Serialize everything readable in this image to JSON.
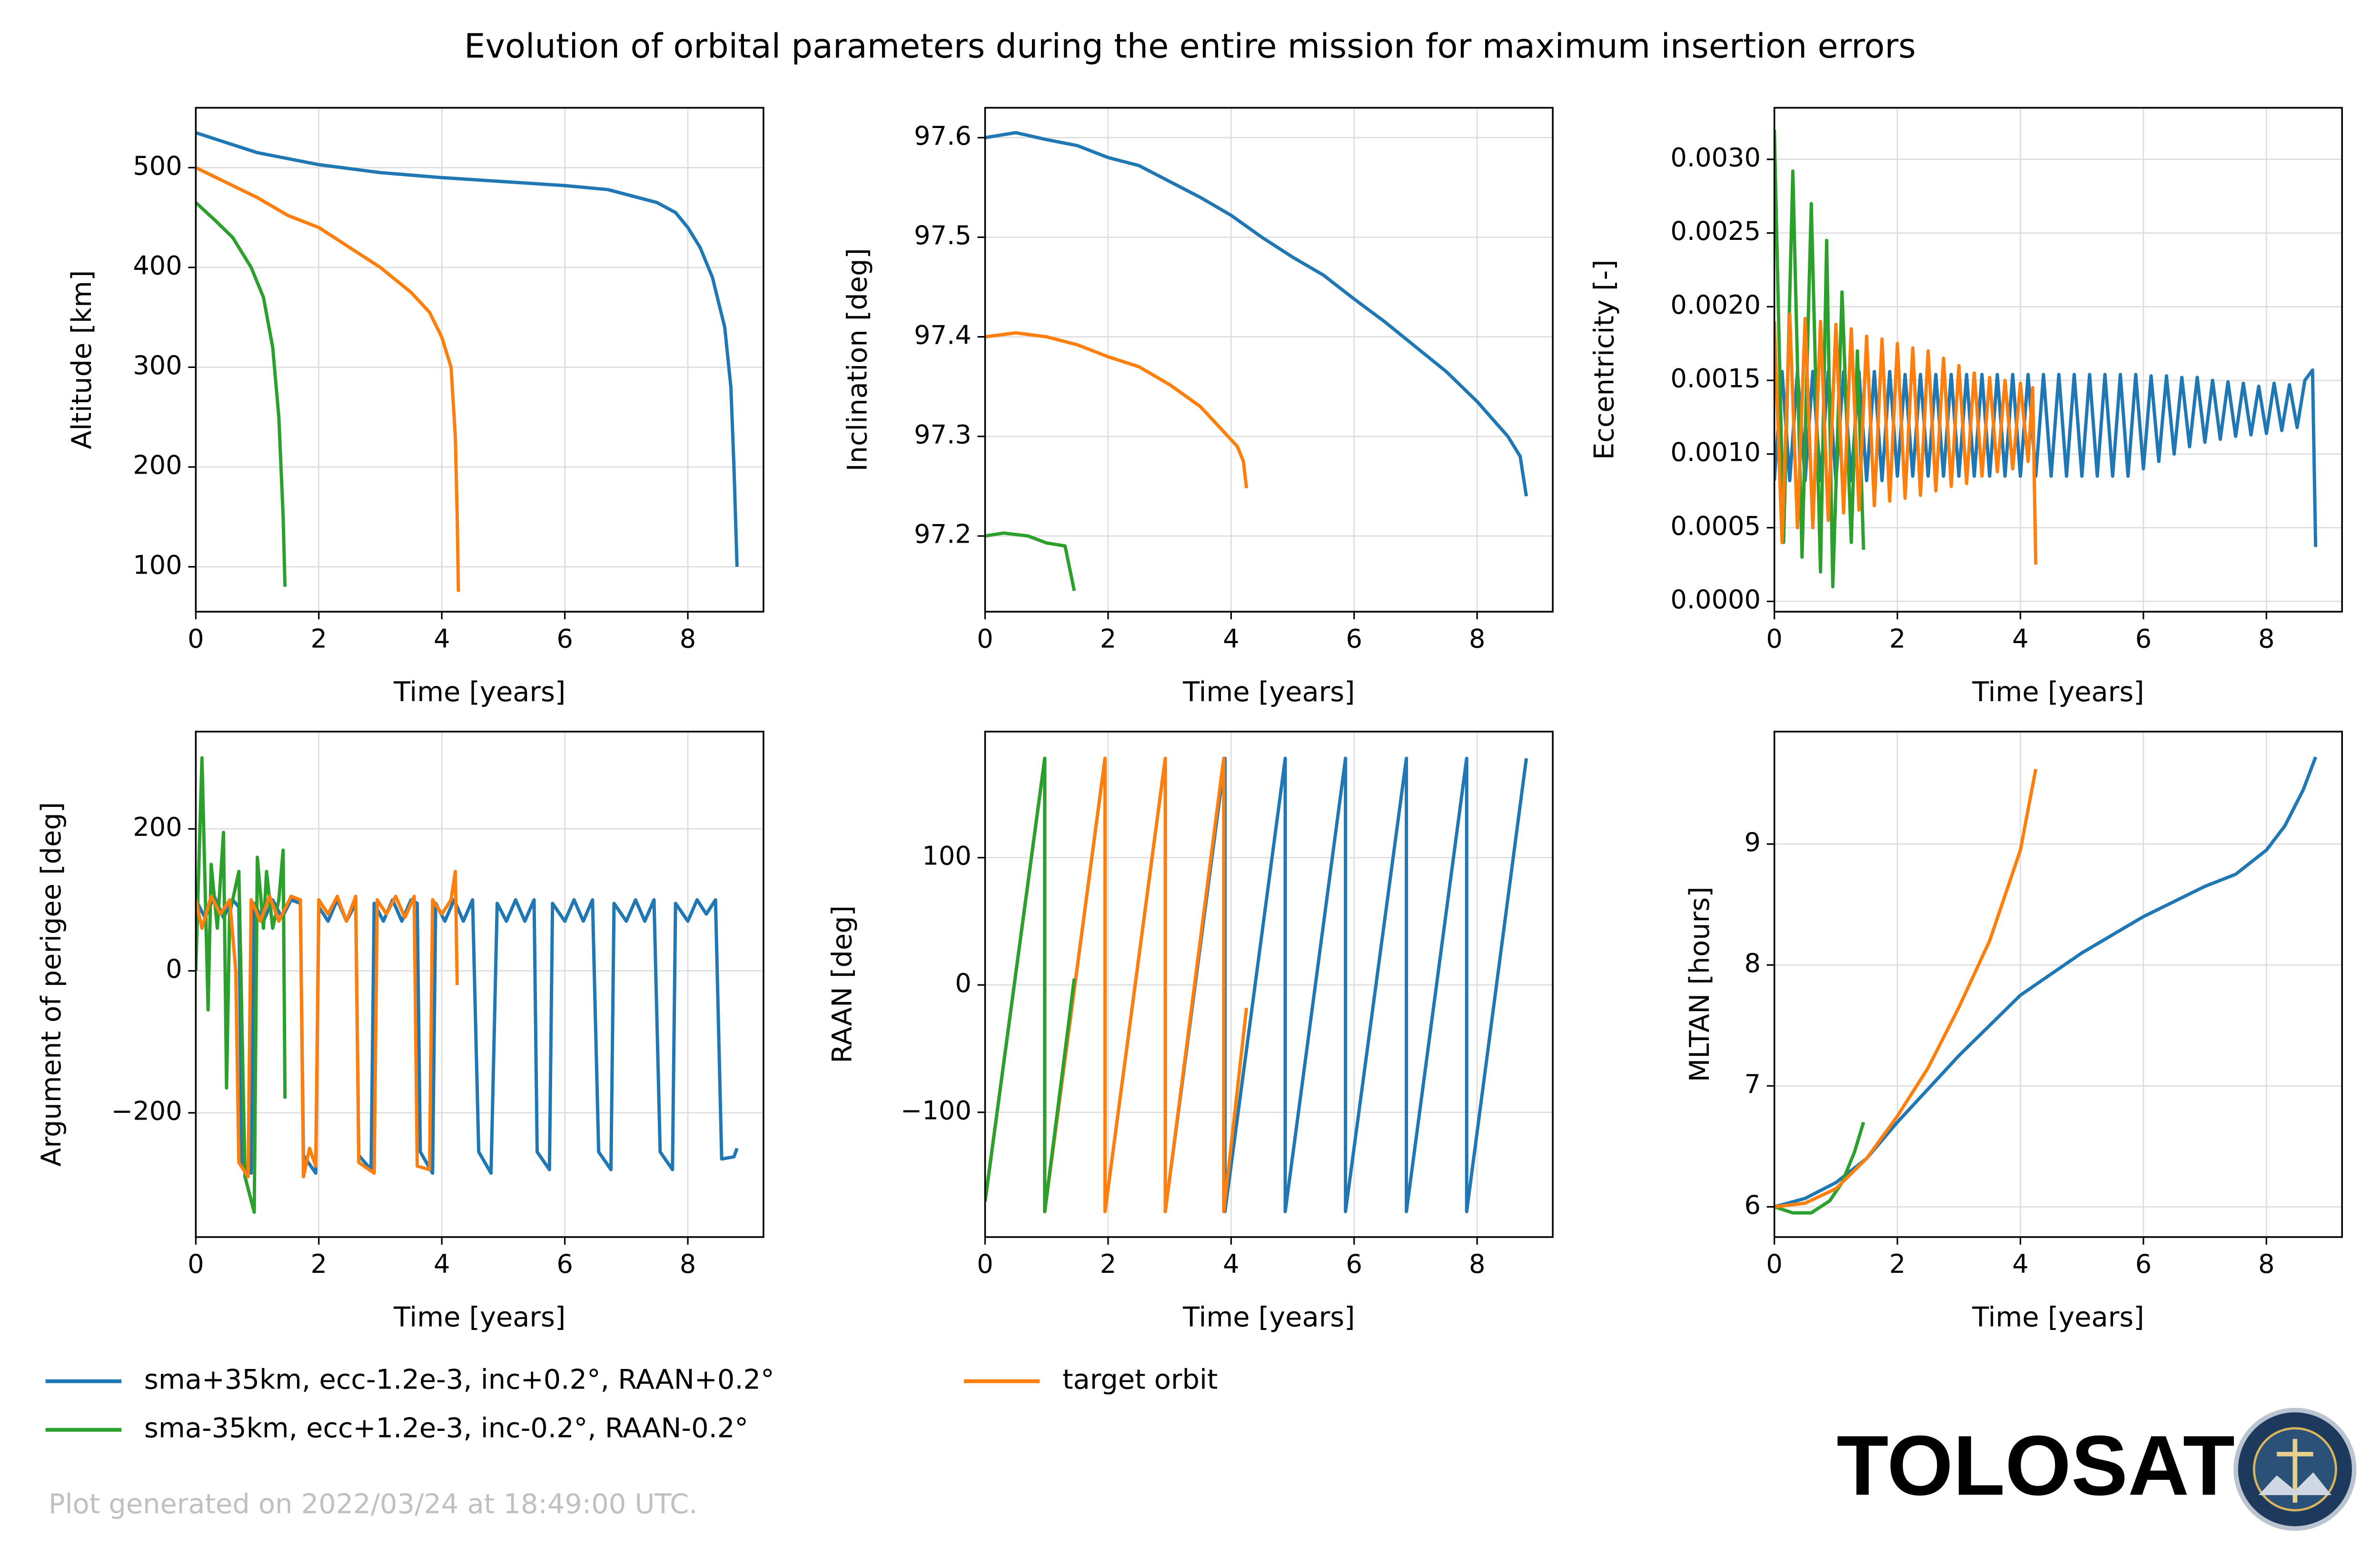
{
  "title": "Evolution of orbital parameters during the entire mission for maximum insertion errors",
  "footer": "Plot generated on 2022/03/24 at 18:49:00 UTC.",
  "logo_text": "TOLOSAT",
  "chart_data": [
    {
      "type": "line",
      "xlabel": "Time [years]",
      "ylabel": "Altitude [km]",
      "xlim": [
        0,
        9.23
      ],
      "xticks": [
        0,
        2,
        4,
        6,
        8
      ],
      "ylim": [
        55,
        560
      ],
      "yticks": [
        100,
        200,
        300,
        400,
        500
      ],
      "grid": true,
      "series": [
        {
          "name": "sma+35km, ecc-1.2e-3, inc+0.2°, RAAN+0.2°",
          "color": "#1f77b4",
          "x": [
            0,
            0.5,
            1,
            2,
            3,
            4,
            5,
            6,
            6.7,
            7.5,
            7.8,
            8.0,
            8.2,
            8.4,
            8.6,
            8.7,
            8.75,
            8.8
          ],
          "values": [
            535,
            525,
            515,
            503,
            495,
            490,
            486,
            482,
            478,
            465,
            455,
            440,
            420,
            390,
            340,
            280,
            200,
            100
          ]
        },
        {
          "name": "sma-35km, ecc+1.2e-3, inc-0.2°, RAAN-0.2°",
          "color": "#2ca02c",
          "x": [
            0,
            0.3,
            0.6,
            0.9,
            1.1,
            1.25,
            1.35,
            1.42,
            1.45
          ],
          "values": [
            465,
            448,
            430,
            400,
            370,
            320,
            250,
            150,
            80
          ]
        },
        {
          "name": "target orbit",
          "color": "#ff7f0e",
          "x": [
            0,
            0.5,
            1,
            1.5,
            2,
            2.5,
            3,
            3.5,
            3.8,
            4.0,
            4.15,
            4.22,
            4.25,
            4.27
          ],
          "values": [
            500,
            485,
            470,
            452,
            440,
            420,
            400,
            375,
            355,
            330,
            300,
            230,
            150,
            75
          ]
        }
      ]
    },
    {
      "type": "line",
      "xlabel": "Time [years]",
      "ylabel": "Inclination [deg]",
      "xlim": [
        0,
        9.23
      ],
      "xticks": [
        0,
        2,
        4,
        6,
        8
      ],
      "ylim": [
        97.124,
        97.63
      ],
      "yticks": [
        97.2,
        97.3,
        97.4,
        97.5,
        97.6
      ],
      "grid": true,
      "series": [
        {
          "name": "sma+35km, ecc-1.2e-3, inc+0.2°, RAAN+0.2°",
          "color": "#1f77b4",
          "x": [
            0,
            0.5,
            1,
            1.5,
            2,
            2.5,
            3,
            3.5,
            4,
            4.5,
            5,
            5.5,
            6,
            6.5,
            7,
            7.5,
            8,
            8.5,
            8.7,
            8.8
          ],
          "values": [
            97.6,
            97.605,
            97.598,
            97.592,
            97.58,
            97.572,
            97.556,
            97.54,
            97.522,
            97.5,
            97.48,
            97.462,
            97.438,
            97.415,
            97.39,
            97.365,
            97.335,
            97.3,
            97.28,
            97.24
          ]
        },
        {
          "name": "sma-35km, ecc+1.2e-3, inc-0.2°, RAAN-0.2°",
          "color": "#2ca02c",
          "x": [
            0,
            0.3,
            0.7,
            1.0,
            1.3,
            1.45
          ],
          "values": [
            97.2,
            97.203,
            97.2,
            97.193,
            97.19,
            97.145
          ]
        },
        {
          "name": "target orbit",
          "color": "#ff7f0e",
          "x": [
            0,
            0.5,
            1,
            1.5,
            2,
            2.5,
            3,
            3.5,
            3.8,
            4.1,
            4.2,
            4.25
          ],
          "values": [
            97.4,
            97.404,
            97.4,
            97.392,
            97.38,
            97.37,
            97.352,
            97.33,
            97.31,
            97.29,
            97.275,
            97.248
          ]
        }
      ]
    },
    {
      "type": "line",
      "xlabel": "Time [years]",
      "ylabel": "Eccentricity [-]",
      "xlim": [
        0,
        9.23
      ],
      "xticks": [
        0,
        2,
        4,
        6,
        8
      ],
      "ylim": [
        -7e-05,
        0.00335
      ],
      "yticks": [
        {
          "value": 0,
          "label": "0.0000"
        },
        {
          "value": 0.0005,
          "label": "0.0005"
        },
        {
          "value": 0.001,
          "label": "0.0010"
        },
        {
          "value": 0.0015,
          "label": "0.0015"
        },
        {
          "value": 0.002,
          "label": "0.0020"
        },
        {
          "value": 0.0025,
          "label": "0.0025"
        },
        {
          "value": 0.003,
          "label": "0.0030"
        }
      ],
      "grid": true,
      "series": [
        {
          "name": "sma+35km, ecc-1.2e-3, inc+0.2°, RAAN+0.2°",
          "color": "#1f77b4",
          "x": [
            0,
            0.125,
            0.25,
            0.375,
            0.5,
            0.625,
            0.75,
            0.875,
            1,
            1.125,
            1.25,
            1.375,
            1.5,
            1.625,
            1.75,
            1.875,
            2,
            2.125,
            2.25,
            2.375,
            2.5,
            2.625,
            2.75,
            2.875,
            3,
            3.125,
            3.25,
            3.375,
            3.5,
            3.625,
            3.75,
            3.875,
            4,
            4.125,
            4.25,
            4.375,
            4.5,
            4.625,
            4.75,
            4.875,
            5,
            5.125,
            5.25,
            5.375,
            5.5,
            5.625,
            5.75,
            5.875,
            6,
            6.125,
            6.25,
            6.375,
            6.5,
            6.625,
            6.75,
            6.875,
            7,
            7.125,
            7.25,
            7.375,
            7.5,
            7.625,
            7.75,
            7.875,
            8,
            8.125,
            8.25,
            8.375,
            8.5,
            8.625,
            8.75,
            8.8
          ],
          "values": [
            0.00082,
            0.00156,
            0.00082,
            0.00156,
            0.00082,
            0.00156,
            0.00082,
            0.00156,
            0.00082,
            0.00156,
            0.00082,
            0.00156,
            0.00082,
            0.00156,
            0.00082,
            0.00156,
            0.00085,
            0.00154,
            0.00085,
            0.00154,
            0.00085,
            0.00154,
            0.00085,
            0.00154,
            0.00085,
            0.00154,
            0.00085,
            0.00154,
            0.00085,
            0.00154,
            0.00085,
            0.00154,
            0.00085,
            0.00154,
            0.00085,
            0.00154,
            0.00085,
            0.00154,
            0.00085,
            0.00154,
            0.00085,
            0.00154,
            0.00085,
            0.00154,
            0.00085,
            0.00154,
            0.00085,
            0.00154,
            0.0009,
            0.00153,
            0.00095,
            0.00153,
            0.001,
            0.00152,
            0.00105,
            0.00152,
            0.00108,
            0.0015,
            0.0011,
            0.00149,
            0.00112,
            0.00148,
            0.00113,
            0.00146,
            0.00114,
            0.00148,
            0.00116,
            0.00147,
            0.00118,
            0.0015,
            0.00157,
            0.00037
          ]
        },
        {
          "name": "sma-35km, ecc+1.2e-3, inc-0.2°, RAAN-0.2°",
          "color": "#2ca02c",
          "x": [
            0,
            0.15,
            0.3,
            0.45,
            0.6,
            0.75,
            0.85,
            0.95,
            1.1,
            1.25,
            1.35,
            1.45
          ],
          "values": [
            0.0032,
            0.0004,
            0.00292,
            0.0003,
            0.0027,
            0.0002,
            0.00245,
            0.0001,
            0.0021,
            0.0004,
            0.0017,
            0.00035
          ]
        },
        {
          "name": "target orbit",
          "color": "#ff7f0e",
          "x": [
            0,
            0.125,
            0.25,
            0.375,
            0.5,
            0.625,
            0.75,
            0.875,
            1,
            1.125,
            1.25,
            1.375,
            1.5,
            1.625,
            1.75,
            1.875,
            2,
            2.125,
            2.25,
            2.375,
            2.5,
            2.625,
            2.75,
            2.875,
            3,
            3.125,
            3.25,
            3.375,
            3.5,
            3.625,
            3.75,
            3.875,
            4,
            4.125,
            4.2,
            4.25
          ],
          "values": [
            0.0019,
            0.0004,
            0.00195,
            0.0005,
            0.00192,
            0.0005,
            0.0019,
            0.00055,
            0.00188,
            0.0006,
            0.00185,
            0.00062,
            0.0018,
            0.00065,
            0.00178,
            0.00068,
            0.00175,
            0.0007,
            0.00172,
            0.00072,
            0.0017,
            0.00075,
            0.00165,
            0.00078,
            0.0016,
            0.0008,
            0.00155,
            0.00085,
            0.00152,
            0.00088,
            0.0015,
            0.0009,
            0.00148,
            0.00095,
            0.00145,
            0.00025
          ]
        }
      ]
    },
    {
      "type": "line",
      "xlabel": "Time [years]",
      "ylabel": "Argument of perigee [deg]",
      "xlim": [
        0,
        9.23
      ],
      "xticks": [
        0,
        2,
        4,
        6,
        8
      ],
      "ylim": [
        -375,
        337
      ],
      "yticks": [
        {
          "value": -200,
          "label": "−200"
        },
        0,
        200
      ],
      "grid": true,
      "series": [
        {
          "name": "sma+35km, ecc-1.2e-3, inc+0.2°, RAAN+0.2°",
          "color": "#1f77b4",
          "x": [
            0,
            0.15,
            0.3,
            0.45,
            0.6,
            0.7,
            0.75,
            0.9,
            0.95,
            1.1,
            1.25,
            1.4,
            1.55,
            1.7,
            1.75,
            1.95,
            2.0,
            2.15,
            2.3,
            2.45,
            2.6,
            2.65,
            2.85,
            2.9,
            3.05,
            3.2,
            3.35,
            3.5,
            3.6,
            3.65,
            3.85,
            3.9,
            4.05,
            4.2,
            4.35,
            4.5,
            4.6,
            4.8,
            4.9,
            5.05,
            5.2,
            5.35,
            5.5,
            5.55,
            5.75,
            5.8,
            6.0,
            6.15,
            6.3,
            6.45,
            6.55,
            6.75,
            6.8,
            7.0,
            7.15,
            7.3,
            7.45,
            7.55,
            7.75,
            7.8,
            8.0,
            8.15,
            8.3,
            8.45,
            8.55,
            8.75,
            8.8
          ],
          "values": [
            100,
            75,
            105,
            75,
            100,
            90,
            -270,
            -285,
            95,
            70,
            100,
            75,
            100,
            95,
            -260,
            -285,
            90,
            70,
            100,
            70,
            95,
            -260,
            -280,
            95,
            70,
            100,
            70,
            100,
            95,
            -255,
            -285,
            95,
            70,
            100,
            70,
            100,
            -255,
            -285,
            95,
            70,
            100,
            70,
            100,
            -255,
            -280,
            95,
            70,
            100,
            70,
            100,
            -255,
            -280,
            95,
            70,
            100,
            70,
            100,
            -255,
            -280,
            95,
            70,
            100,
            80,
            100,
            -265,
            -262,
            -250
          ]
        },
        {
          "name": "sma-35km, ecc+1.2e-3, inc-0.2°, RAAN-0.2°",
          "color": "#2ca02c",
          "x": [
            0,
            0.1,
            0.2,
            0.25,
            0.35,
            0.45,
            0.5,
            0.55,
            0.7,
            0.8,
            0.95,
            1.0,
            1.1,
            1.15,
            1.25,
            1.35,
            1.42,
            1.45
          ],
          "values": [
            0,
            300,
            -55,
            150,
            60,
            195,
            -165,
            80,
            140,
            -290,
            -340,
            160,
            60,
            140,
            60,
            100,
            170,
            -180
          ]
        },
        {
          "name": "target orbit",
          "color": "#ff7f0e",
          "x": [
            0,
            0.1,
            0.25,
            0.4,
            0.55,
            0.65,
            0.7,
            0.85,
            0.9,
            1.05,
            1.2,
            1.35,
            1.55,
            1.7,
            1.75,
            1.85,
            1.95,
            2.0,
            2.15,
            2.3,
            2.45,
            2.6,
            2.65,
            2.9,
            2.95,
            3.1,
            3.25,
            3.4,
            3.55,
            3.6,
            3.8,
            3.85,
            4.0,
            4.15,
            4.22,
            4.25
          ],
          "values": [
            100,
            60,
            105,
            80,
            100,
            0,
            -270,
            -290,
            100,
            70,
            105,
            70,
            105,
            100,
            -290,
            -250,
            -275,
            100,
            80,
            105,
            70,
            105,
            -270,
            -285,
            100,
            80,
            105,
            75,
            105,
            -275,
            -280,
            100,
            80,
            100,
            140,
            -20
          ]
        }
      ]
    },
    {
      "type": "line",
      "xlabel": "Time [years]",
      "ylabel": "RAAN [deg]",
      "xlim": [
        0,
        9.23
      ],
      "xticks": [
        0,
        2,
        4,
        6,
        8
      ],
      "ylim": [
        -198,
        199
      ],
      "yticks": [
        {
          "value": -100,
          "label": "−100"
        },
        0,
        100
      ],
      "grid": true,
      "series": [
        {
          "name": "sma+35km, ecc-1.2e-3, inc+0.2°, RAAN+0.2°",
          "color": "#1f77b4",
          "x": [
            0,
            0.97,
            0.97,
            1.95,
            1.95,
            2.93,
            2.93,
            3.9,
            3.9,
            4.88,
            4.88,
            5.86,
            5.86,
            6.85,
            6.85,
            7.83,
            7.83,
            8.8
          ],
          "values": [
            -170,
            178,
            -178,
            178,
            -178,
            178,
            -178,
            178,
            -178,
            178,
            -178,
            178,
            -178,
            178,
            -178,
            178,
            -178,
            178
          ]
        },
        {
          "name": "target orbit",
          "color": "#ff7f0e",
          "x": [
            0,
            0.97,
            0.97,
            1.95,
            1.95,
            2.93,
            2.93,
            3.88,
            3.88,
            4.25
          ],
          "values": [
            -170,
            178,
            -178,
            178,
            -178,
            178,
            -178,
            178,
            -178,
            -18
          ]
        },
        {
          "name": "sma-35km, ecc+1.2e-3, inc-0.2°, RAAN-0.2°",
          "color": "#2ca02c",
          "x": [
            0,
            0.97,
            0.97,
            1.45
          ],
          "values": [
            -170,
            178,
            -178,
            5
          ]
        }
      ]
    },
    {
      "type": "line",
      "xlabel": "Time [years]",
      "ylabel": "MLTAN [hours]",
      "xlim": [
        0,
        9.23
      ],
      "xticks": [
        0,
        2,
        4,
        6,
        8
      ],
      "ylim": [
        5.75,
        9.93
      ],
      "yticks": [
        6,
        7,
        8,
        9
      ],
      "grid": true,
      "series": [
        {
          "name": "sma+35km, ecc-1.2e-3, inc+0.2°, RAAN+0.2°",
          "color": "#1f77b4",
          "x": [
            0,
            0.5,
            1,
            1.5,
            2,
            3,
            4,
            5,
            6,
            7,
            7.5,
            8,
            8.3,
            8.6,
            8.8
          ],
          "values": [
            6,
            6.07,
            6.2,
            6.4,
            6.7,
            7.25,
            7.75,
            8.1,
            8.4,
            8.65,
            8.75,
            8.95,
            9.15,
            9.45,
            9.72
          ]
        },
        {
          "name": "sma-35km, ecc+1.2e-3, inc-0.2°, RAAN-0.2°",
          "color": "#2ca02c",
          "x": [
            0,
            0.3,
            0.6,
            0.9,
            1.1,
            1.3,
            1.45
          ],
          "values": [
            6,
            5.95,
            5.95,
            6.05,
            6.2,
            6.45,
            6.7
          ]
        },
        {
          "name": "target orbit",
          "color": "#ff7f0e",
          "x": [
            0,
            0.5,
            1,
            1.5,
            2,
            2.5,
            3,
            3.5,
            4,
            4.25
          ],
          "values": [
            6,
            6.03,
            6.15,
            6.4,
            6.75,
            7.15,
            7.65,
            8.2,
            8.95,
            9.62
          ]
        }
      ]
    }
  ]
}
